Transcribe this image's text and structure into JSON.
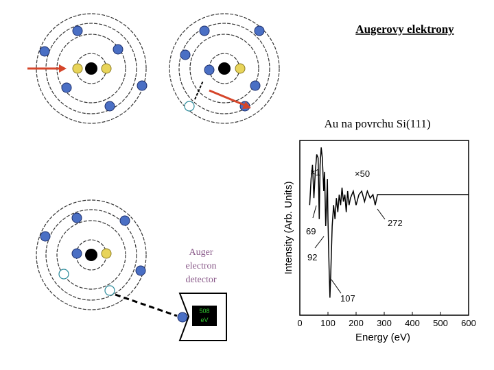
{
  "slide": {
    "title": "Augerovy elektrony",
    "subtitle": "Au na povrchu Si(111)",
    "detector_label": [
      "Auger",
      "electron",
      "detector"
    ],
    "detector_display": [
      "508",
      "eV"
    ]
  },
  "chart_data": {
    "type": "line",
    "x_label": "Energy (eV)",
    "y_label": "Intensity (Arb. Units)",
    "x": [
      35,
      40,
      45,
      50,
      55,
      60,
      65,
      69,
      72,
      76,
      80,
      85,
      88,
      92,
      95,
      98,
      100,
      104,
      107,
      110,
      115,
      120,
      125,
      130,
      135,
      140,
      145,
      150,
      155,
      160,
      165,
      170,
      175,
      180,
      190,
      200,
      210,
      220,
      230,
      240,
      250,
      260,
      268,
      272,
      276,
      280,
      300,
      400,
      500,
      600
    ],
    "series": [
      {
        "color": "#000000",
        "values": [
          63,
          78,
          86,
          67,
          82,
          92,
          90,
          55,
          86,
          96,
          90,
          71,
          82,
          51,
          63,
          78,
          55,
          27,
          10,
          24,
          51,
          63,
          55,
          67,
          59,
          69,
          63,
          73,
          65,
          69,
          59,
          71,
          63,
          67,
          71,
          63,
          69,
          71,
          65,
          71,
          67,
          69,
          63,
          66,
          69,
          69,
          69,
          69,
          69,
          69
        ]
      }
    ],
    "xlim": [
      0,
      600
    ],
    "xticks": [
      0,
      100,
      200,
      300,
      400,
      500,
      600
    ],
    "ylim": [
      0,
      100
    ],
    "annotations": [
      "×1",
      "×50",
      "69",
      "92",
      "107",
      "272"
    ]
  }
}
